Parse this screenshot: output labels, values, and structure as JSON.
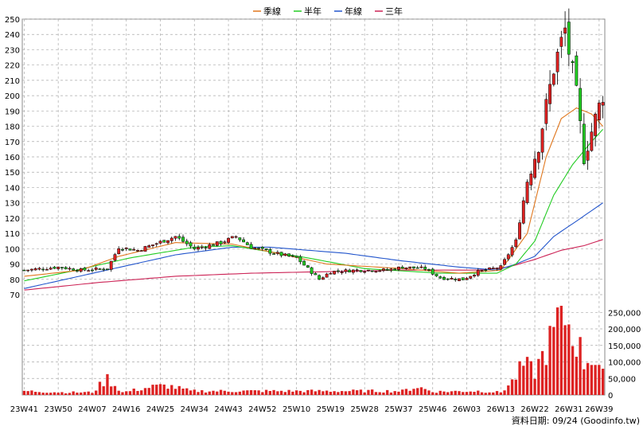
{
  "chart_data": {
    "type": "candlestick-with-volume",
    "legend": [
      {
        "name": "季線",
        "color": "#e0771e"
      },
      {
        "name": "半年",
        "color": "#22cc22"
      },
      {
        "name": "年線",
        "color": "#2255cc"
      },
      {
        "name": "三年",
        "color": "#cc2255"
      }
    ],
    "legend_placement": "top-center",
    "price_axis": {
      "ylim": [
        70,
        250
      ],
      "ticks": [
        70,
        80,
        90,
        100,
        110,
        120,
        130,
        140,
        150,
        160,
        170,
        180,
        190,
        200,
        210,
        220,
        230,
        240,
        250
      ]
    },
    "volume_axis": {
      "ylim": [
        0,
        270000
      ],
      "ticks": [
        "0",
        "50,000",
        "100,000",
        "150,000",
        "200,000",
        "250,000"
      ],
      "tick_values": [
        0,
        50000,
        100000,
        150000,
        200000,
        250000
      ]
    },
    "x_ticks": [
      "23W41",
      "23W50",
      "24W07",
      "24W16",
      "24W25",
      "24W34",
      "24W43",
      "24W52",
      "25W10",
      "25W19",
      "25W28",
      "25W37",
      "25W46",
      "26W03",
      "26W13",
      "26W22",
      "26W31",
      "26W39"
    ],
    "x_tick_index": [
      0,
      9,
      18,
      27,
      36,
      45,
      54,
      63,
      72,
      81,
      90,
      99,
      108,
      117,
      126,
      135,
      144,
      152
    ],
    "weeks_count": 154,
    "price_close_keypoints": [
      [
        0,
        86
      ],
      [
        9,
        88
      ],
      [
        15,
        86
      ],
      [
        22,
        87
      ],
      [
        25,
        101
      ],
      [
        30,
        99
      ],
      [
        40,
        108
      ],
      [
        45,
        100
      ],
      [
        52,
        104
      ],
      [
        56,
        108
      ],
      [
        60,
        101
      ],
      [
        68,
        96
      ],
      [
        72,
        94
      ],
      [
        78,
        80
      ],
      [
        81,
        85
      ],
      [
        88,
        86
      ],
      [
        96,
        86
      ],
      [
        100,
        88
      ],
      [
        106,
        87
      ],
      [
        110,
        81
      ],
      [
        116,
        80
      ],
      [
        120,
        85
      ],
      [
        126,
        88
      ],
      [
        130,
        105
      ],
      [
        133,
        145
      ],
      [
        136,
        168
      ],
      [
        140,
        218
      ],
      [
        143,
        243
      ],
      [
        146,
        200
      ],
      [
        148,
        160
      ],
      [
        151,
        185
      ],
      [
        153,
        201
      ]
    ],
    "ma_quarter_keypoints": [
      [
        0,
        82
      ],
      [
        15,
        86
      ],
      [
        25,
        95
      ],
      [
        40,
        104
      ],
      [
        55,
        103
      ],
      [
        65,
        98
      ],
      [
        80,
        90
      ],
      [
        100,
        87
      ],
      [
        115,
        84
      ],
      [
        126,
        86
      ],
      [
        133,
        110
      ],
      [
        138,
        160
      ],
      [
        142,
        185
      ],
      [
        146,
        192
      ],
      [
        150,
        188
      ],
      [
        153,
        180
      ]
    ],
    "ma_half_keypoints": [
      [
        0,
        79
      ],
      [
        12,
        85
      ],
      [
        28,
        94
      ],
      [
        45,
        101
      ],
      [
        55,
        102
      ],
      [
        75,
        94
      ],
      [
        90,
        87
      ],
      [
        110,
        84
      ],
      [
        125,
        84
      ],
      [
        130,
        90
      ],
      [
        135,
        105
      ],
      [
        140,
        135
      ],
      [
        145,
        155
      ],
      [
        150,
        170
      ],
      [
        153,
        178
      ]
    ],
    "ma_year_keypoints": [
      [
        0,
        74
      ],
      [
        20,
        85
      ],
      [
        40,
        96
      ],
      [
        55,
        101
      ],
      [
        65,
        101
      ],
      [
        85,
        97
      ],
      [
        100,
        92
      ],
      [
        115,
        88
      ],
      [
        125,
        86
      ],
      [
        130,
        90
      ],
      [
        135,
        95
      ],
      [
        140,
        108
      ],
      [
        146,
        118
      ],
      [
        153,
        130
      ]
    ],
    "ma_three_keypoints": [
      [
        0,
        73
      ],
      [
        20,
        78
      ],
      [
        40,
        82
      ],
      [
        60,
        84
      ],
      [
        80,
        85
      ],
      [
        100,
        86
      ],
      [
        120,
        86
      ],
      [
        128,
        88
      ],
      [
        135,
        93
      ],
      [
        142,
        99
      ],
      [
        148,
        102
      ],
      [
        153,
        106
      ]
    ],
    "volume_keypoints": [
      [
        0,
        12000
      ],
      [
        10,
        8000
      ],
      [
        18,
        8000
      ],
      [
        22,
        50000
      ],
      [
        26,
        8000
      ],
      [
        34,
        25000
      ],
      [
        38,
        28000
      ],
      [
        44,
        12000
      ],
      [
        60,
        12000
      ],
      [
        80,
        12000
      ],
      [
        100,
        12000
      ],
      [
        104,
        25000
      ],
      [
        108,
        10000
      ],
      [
        120,
        12000
      ],
      [
        126,
        8000
      ],
      [
        129,
        40000
      ],
      [
        132,
        90000
      ],
      [
        135,
        70000
      ],
      [
        138,
        140000
      ],
      [
        140,
        180000
      ],
      [
        142,
        270000
      ],
      [
        144,
        210000
      ],
      [
        146,
        170000
      ],
      [
        148,
        100000
      ],
      [
        150,
        120000
      ],
      [
        152,
        90000
      ],
      [
        153,
        60000
      ]
    ],
    "source_text": "資料日期: 09/24  (Goodinfo.tw)"
  }
}
